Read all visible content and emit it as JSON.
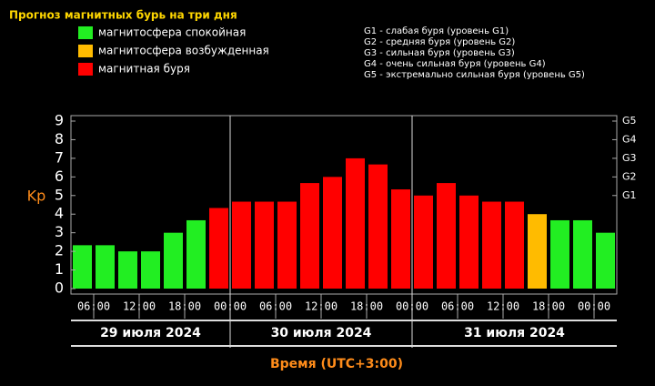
{
  "chart_data": {
    "type": "bar",
    "title": "Прогноз магнитных бурь на три дня",
    "ylabel": "Kp",
    "xlabel": "Время (UTC+3:00)",
    "legend": [
      {
        "name": "магнитосфера спокойная",
        "color": "#22ee22"
      },
      {
        "name": "магнитосфера возбужденная",
        "color": "#ffbb00"
      },
      {
        "name": "магнитная буря",
        "color": "#ff0000"
      }
    ],
    "storm_levels": [
      "G1 - слабая буря (уровень G1)",
      "G2 - средняя буря (уровень G2)",
      "G3 - сильная буря (уровень G3)",
      "G4 - очень сильная буря (уровень G4)",
      "G5 - экстремально сильная буря (уровень G5)"
    ],
    "values": [
      2.33,
      2.33,
      2,
      2,
      3,
      3.67,
      4.33,
      4.67,
      4.67,
      4.67,
      5.67,
      6,
      7,
      6.67,
      5.33,
      5,
      5.67,
      5,
      4.67,
      4.67,
      4,
      3.67,
      3.67,
      3
    ],
    "colors": [
      "#22ee22",
      "#22ee22",
      "#22ee22",
      "#22ee22",
      "#22ee22",
      "#22ee22",
      "#ff0000",
      "#ff0000",
      "#ff0000",
      "#ff0000",
      "#ff0000",
      "#ff0000",
      "#ff0000",
      "#ff0000",
      "#ff0000",
      "#ff0000",
      "#ff0000",
      "#ff0000",
      "#ff0000",
      "#ff0000",
      "#ffbb00",
      "#22ee22",
      "#22ee22",
      "#22ee22"
    ],
    "xlim": [
      0,
      24
    ],
    "xticks": [
      {
        "value": 1,
        "label": "06:00"
      },
      {
        "value": 3,
        "label": "12:00"
      },
      {
        "value": 5,
        "label": "18:00"
      },
      {
        "value": 7,
        "label": "00:00"
      },
      {
        "value": 9,
        "label": "06:00"
      },
      {
        "value": 11,
        "label": "12:00"
      },
      {
        "value": 13,
        "label": "18:00"
      },
      {
        "value": 15,
        "label": "00:00"
      },
      {
        "value": 17,
        "label": "06:00"
      },
      {
        "value": 19,
        "label": "12:00"
      },
      {
        "value": 21,
        "label": "18:00"
      },
      {
        "value": 23,
        "label": "00:00"
      }
    ],
    "days": [
      "29 июля 2024",
      "30 июля 2024",
      "31 июля 2024"
    ],
    "ylim": [
      0,
      9
    ],
    "yticks": [
      0,
      1,
      2,
      3,
      4,
      5,
      6,
      7,
      8,
      9
    ],
    "y2lim": [
      0,
      9
    ],
    "y2ticks": [
      {
        "value": 5,
        "label": "G1"
      },
      {
        "value": 6,
        "label": "G2"
      },
      {
        "value": 7,
        "label": "G3"
      },
      {
        "value": 8,
        "label": "G4"
      },
      {
        "value": 9,
        "label": "G5"
      }
    ]
  }
}
